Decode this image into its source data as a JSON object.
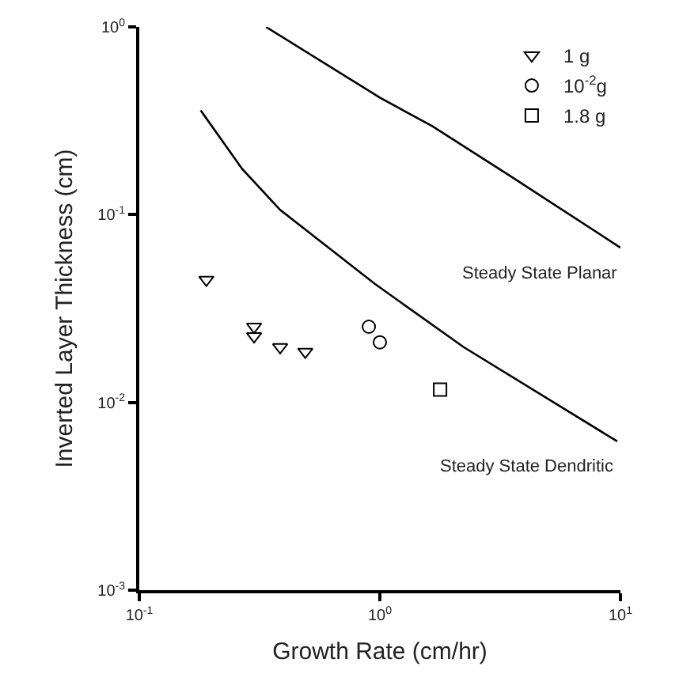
{
  "chart_data": {
    "type": "scatter",
    "xlabel": "Growth Rate (cm/hr)",
    "ylabel": "Inverted Layer Thickness (cm)",
    "log": "xy",
    "grid": false,
    "legend": "top right",
    "xlim": [
      0.1,
      10
    ],
    "ylim": [
      0.001,
      1
    ],
    "xticks": [
      {
        "value": 0.1,
        "label": "10$^{-1}$"
      },
      {
        "value": 1,
        "label": "10$^{0}$"
      },
      {
        "value": 10,
        "label": "10$^{1}$"
      }
    ],
    "yticks": [
      {
        "value": 0.001,
        "label": "10$^{-3}$"
      },
      {
        "value": 0.01,
        "label": "10$^{-2}$"
      },
      {
        "value": 0.1,
        "label": "10$^{-1}$"
      },
      {
        "value": 1,
        "label": "10$^{0}$"
      }
    ],
    "series": [
      {
        "name": "1 g",
        "color": "#000000",
        "marker": "triangle",
        "x": [
          0.19,
          0.3,
          0.3,
          0.385,
          0.49
        ],
        "values": [
          0.045,
          0.0253,
          0.0225,
          0.0197,
          0.0186
        ]
      },
      {
        "name": "10$^{-2}$g",
        "color": "#000000",
        "marker": "circle",
        "x": [
          0.9,
          1.0
        ],
        "values": [
          0.0253,
          0.0209
        ]
      },
      {
        "name": "1.8 g",
        "color": "#000000",
        "marker": "square",
        "x": [
          1.78
        ],
        "values": [
          0.0117
        ]
      },
      {
        "type": "line",
        "color": "#000000",
        "marker": "none",
        "line_style": "solid",
        "x": [
          0.336,
          1.0,
          1.65,
          3.5,
          10
        ],
        "values": [
          1.0,
          0.42,
          0.296,
          0.16,
          0.0667
        ]
      },
      {
        "type": "line",
        "color": "#000000",
        "marker": "none",
        "line_style": "solid",
        "x": [
          0.18,
          0.268,
          0.385,
          0.955,
          2.23,
          9.7
        ],
        "values": [
          0.359,
          0.175,
          0.106,
          0.0427,
          0.0197,
          0.0062
        ]
      }
    ],
    "annotations": [
      {
        "text": "Steady State Planar",
        "x": 10,
        "y": 0.0667
      },
      {
        "text": "Steady State Dendritic",
        "x": 9.7,
        "y": 0.0062
      }
    ]
  }
}
